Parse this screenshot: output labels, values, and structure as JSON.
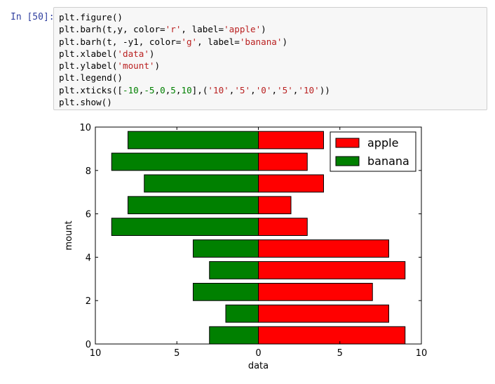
{
  "cell": {
    "prompt": "In [50]:",
    "code_lines": [
      [
        {
          "t": "plt.figure()",
          "c": ""
        }
      ],
      [
        {
          "t": "plt.barh(t,y, color=",
          "c": ""
        },
        {
          "t": "'r'",
          "c": "str"
        },
        {
          "t": ", label=",
          "c": ""
        },
        {
          "t": "'apple'",
          "c": "str"
        },
        {
          "t": ")",
          "c": ""
        }
      ],
      [
        {
          "t": "plt.barh(t, -y1, color=",
          "c": ""
        },
        {
          "t": "'g'",
          "c": "str"
        },
        {
          "t": ", label=",
          "c": ""
        },
        {
          "t": "'banana'",
          "c": "str"
        },
        {
          "t": ")",
          "c": ""
        }
      ],
      [
        {
          "t": "plt.xlabel(",
          "c": ""
        },
        {
          "t": "'data'",
          "c": "str"
        },
        {
          "t": ")",
          "c": ""
        }
      ],
      [
        {
          "t": "plt.ylabel(",
          "c": ""
        },
        {
          "t": "'mount'",
          "c": "str"
        },
        {
          "t": ")",
          "c": ""
        }
      ],
      [
        {
          "t": "plt.legend()",
          "c": ""
        }
      ],
      [
        {
          "t": "plt.xticks([",
          "c": ""
        },
        {
          "t": "-10",
          "c": "num"
        },
        {
          "t": ",",
          "c": ""
        },
        {
          "t": "-5",
          "c": "num"
        },
        {
          "t": ",",
          "c": ""
        },
        {
          "t": "0",
          "c": "num"
        },
        {
          "t": ",",
          "c": ""
        },
        {
          "t": "5",
          "c": "num"
        },
        {
          "t": ",",
          "c": ""
        },
        {
          "t": "10",
          "c": "num"
        },
        {
          "t": "],(",
          "c": ""
        },
        {
          "t": "'10'",
          "c": "str"
        },
        {
          "t": ",",
          "c": ""
        },
        {
          "t": "'5'",
          "c": "str"
        },
        {
          "t": ",",
          "c": ""
        },
        {
          "t": "'0'",
          "c": "str"
        },
        {
          "t": ",",
          "c": ""
        },
        {
          "t": "'5'",
          "c": "str"
        },
        {
          "t": ",",
          "c": ""
        },
        {
          "t": "'10'",
          "c": "str"
        },
        {
          "t": "))",
          "c": ""
        }
      ],
      [
        {
          "t": "plt.show()",
          "c": ""
        }
      ]
    ]
  },
  "chart_data": {
    "type": "bar",
    "orientation": "horizontal",
    "categories": [
      0,
      1,
      2,
      3,
      4,
      5,
      6,
      7,
      8,
      9
    ],
    "series": [
      {
        "name": "apple",
        "color": "#ff0000",
        "values": [
          9,
          8,
          7,
          9,
          8,
          3,
          2,
          4,
          3,
          4
        ]
      },
      {
        "name": "banana",
        "color": "#008000",
        "values": [
          -3,
          -2,
          -4,
          -3,
          -4,
          -9,
          -8,
          -7,
          -9,
          -8
        ]
      }
    ],
    "xlabel": "data",
    "ylabel": "mount",
    "xlim": [
      -10,
      10
    ],
    "ylim": [
      0,
      10
    ],
    "xticks": [
      -10,
      -5,
      0,
      5,
      10
    ],
    "xtick_labels": [
      "10",
      "5",
      "0",
      "5",
      "10"
    ],
    "yticks": [
      0,
      2,
      4,
      6,
      8,
      10
    ],
    "ytick_labels": [
      "0",
      "2",
      "4",
      "6",
      "8",
      "10"
    ],
    "legend": {
      "placement": "upper right",
      "entries": [
        "apple",
        "banana"
      ]
    },
    "grid": false
  }
}
